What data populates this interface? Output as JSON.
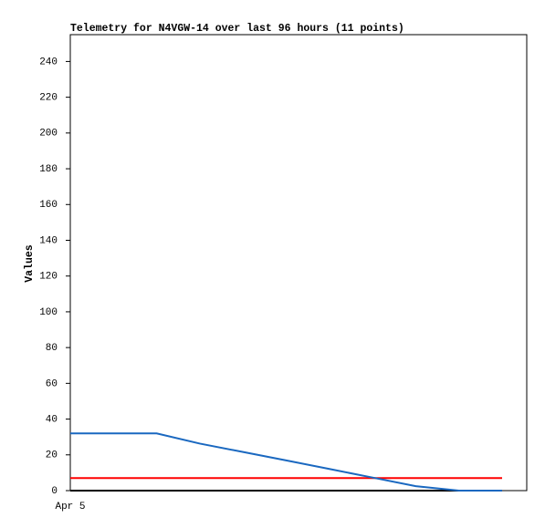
{
  "chart_data": {
    "type": "line",
    "title": "Telemetry for N4VGW-14 over last 96 hours (11 points)",
    "y_label": "Values",
    "categories": [
      "Apr 5",
      null,
      null,
      null,
      null,
      null,
      null,
      null,
      null,
      null,
      null
    ],
    "series": [
      {
        "color": "#000000",
        "values": [
          0,
          0,
          0,
          0,
          0,
          0,
          0,
          0,
          0,
          0,
          0
        ]
      },
      {
        "color": "#ff0000",
        "values": [
          7,
          7,
          7,
          7,
          7,
          7,
          7,
          7,
          7,
          7,
          7
        ]
      },
      {
        "color": "#1a68c0",
        "values": [
          32,
          32,
          32,
          26.3,
          21.6,
          16.9,
          12.1,
          7.3,
          2.5,
          0,
          0
        ]
      }
    ],
    "ylim": [
      0,
      255
    ],
    "yticks": [
      0,
      20,
      40,
      60,
      80,
      100,
      120,
      140,
      160,
      180,
      200,
      220,
      240
    ]
  }
}
